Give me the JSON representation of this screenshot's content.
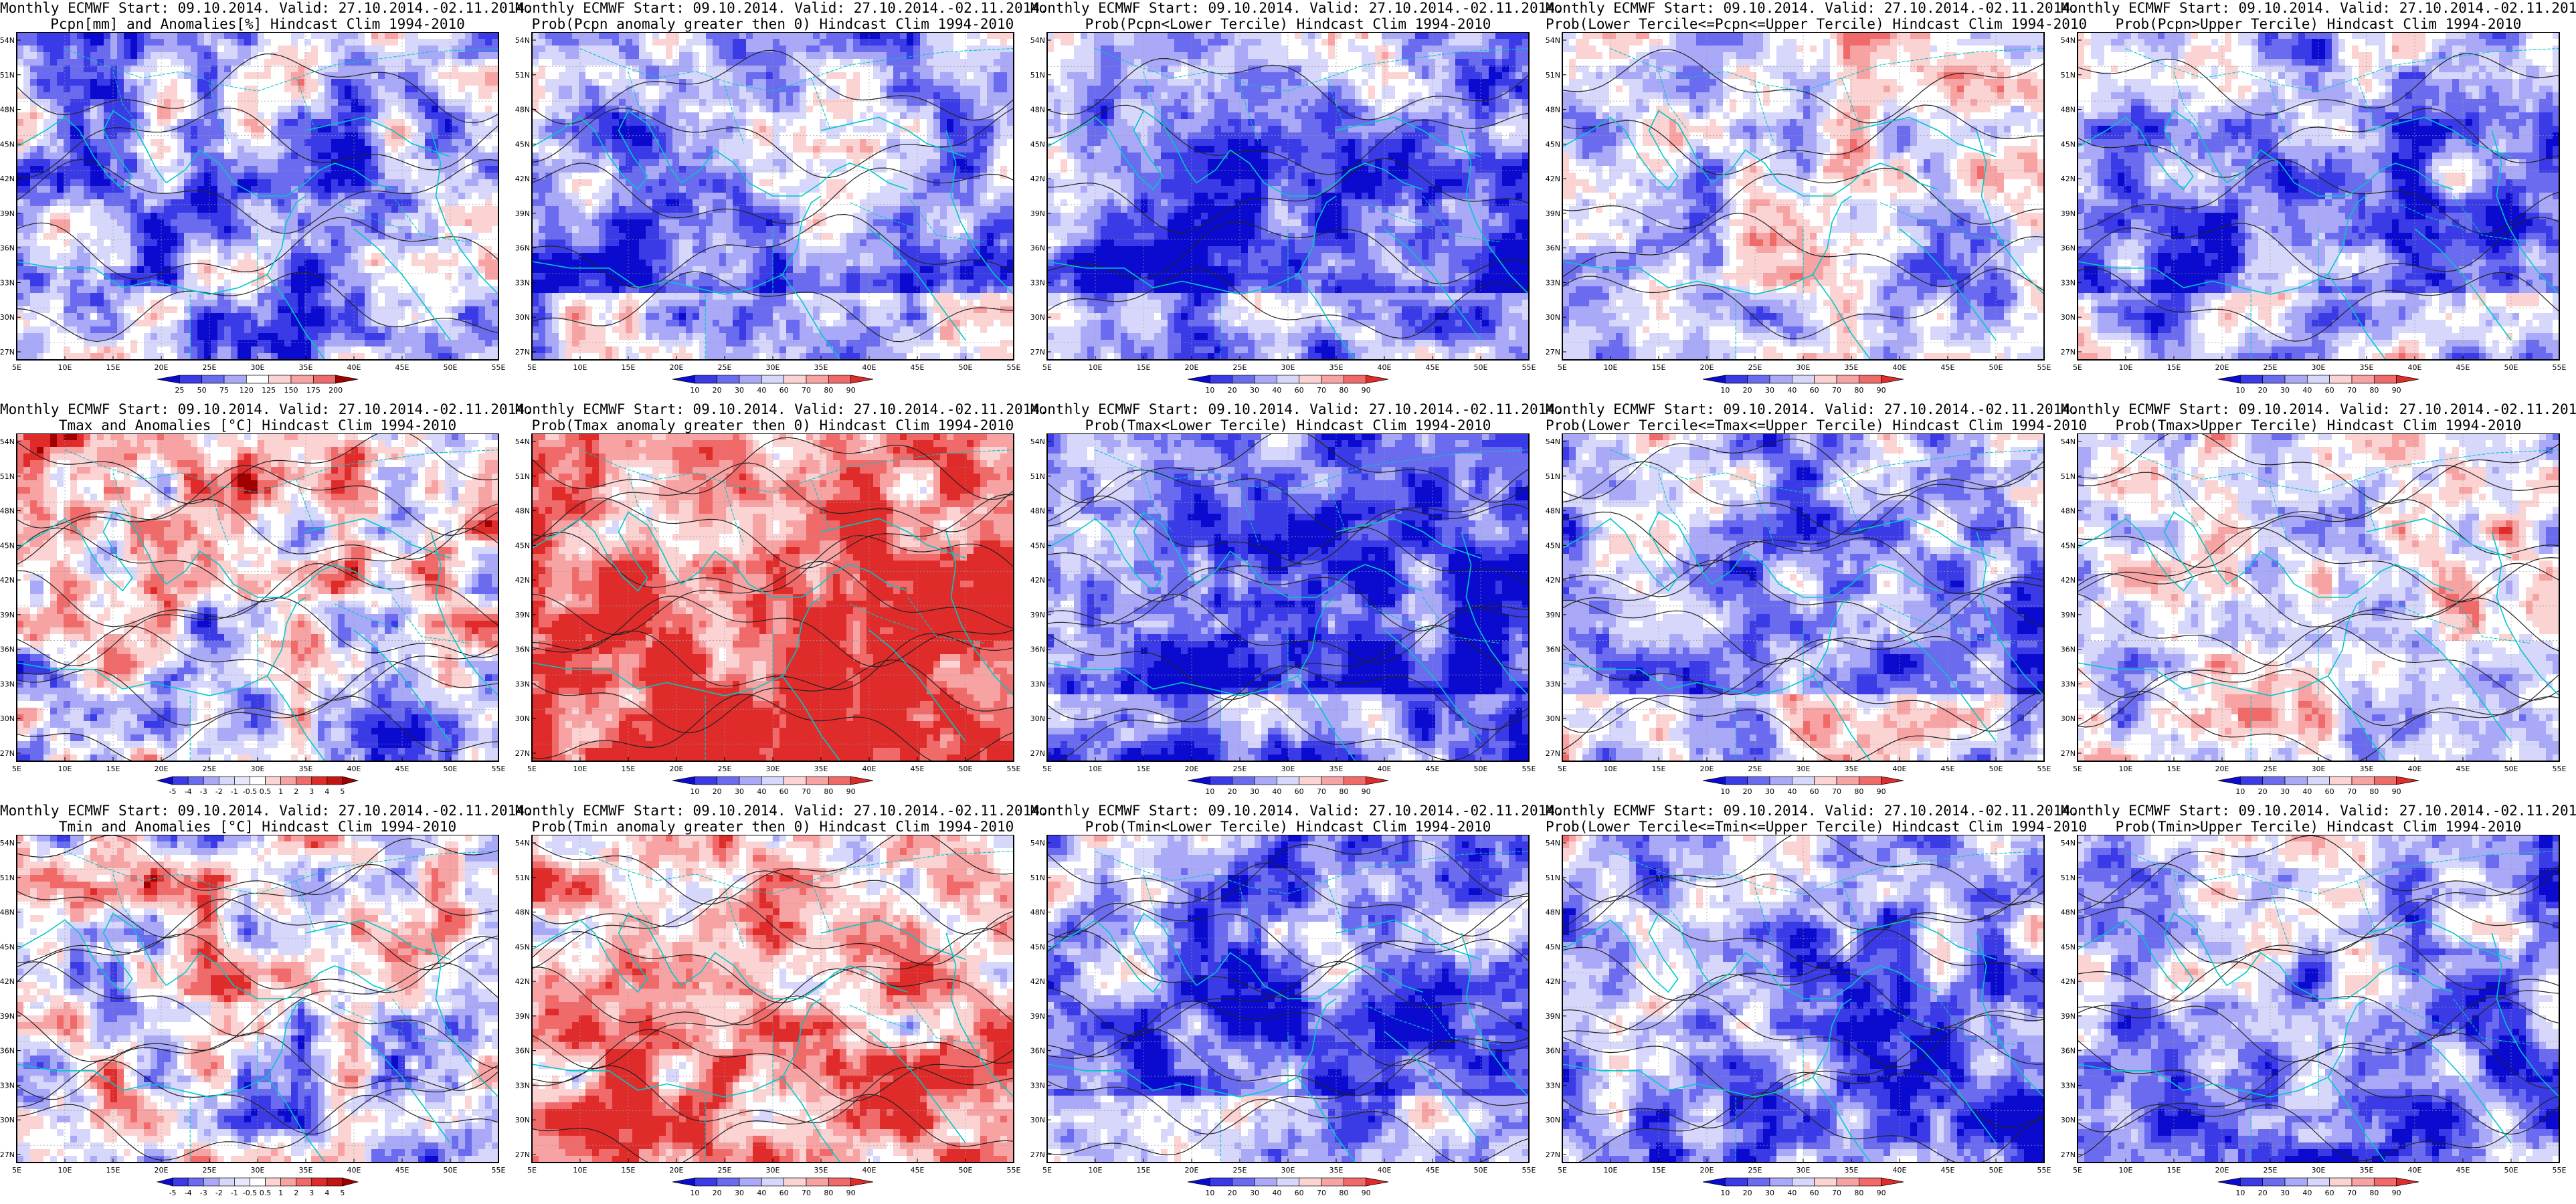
{
  "colors": {
    "dblue": "#0b0bd0",
    "blue": "#3a3ae6",
    "mblue": "#6b6bf0",
    "lblue": "#a9a9f7",
    "vlblue": "#d7d7fb",
    "white": "#ffffff",
    "vlred": "#fcd3d3",
    "lred": "#f7a3a3",
    "mred": "#f06a6a",
    "red": "#e02b2b",
    "dred": "#a00000",
    "coast": "#00c8c8",
    "contour": "#222222"
  },
  "axes": {
    "lat_labels": [
      "54N",
      "51N",
      "48N",
      "45N",
      "42N",
      "39N",
      "36N",
      "33N",
      "30N",
      "27N"
    ],
    "lon_labels": [
      "5E",
      "10E",
      "15E",
      "20E",
      "25E",
      "30E",
      "35E",
      "40E",
      "45E",
      "50E",
      "55E"
    ]
  },
  "colorbars": {
    "pcpn_anom": [
      "25",
      "50",
      "75",
      "120",
      "125",
      "150",
      "175",
      "200"
    ],
    "prob_a": [
      "10",
      "20",
      "30",
      "40",
      "60",
      "70",
      "80",
      "90"
    ],
    "prob_b": [
      "10",
      "20",
      "30",
      "40",
      "60",
      "70",
      "80",
      "90"
    ],
    "temp_anom": [
      "-5",
      "-4",
      "-3",
      "-2",
      "-1",
      "-0.5",
      "0.5",
      "1",
      "2",
      "3",
      "4",
      "5"
    ]
  },
  "panels": [
    {
      "l1": "Monthly ECMWF Start: 09.10.2014. Valid: 27.10.2014.-02.11.2014.",
      "l2": "Pcpn[mm] and Anomalies[%] Hindcast Clim 1994-2010",
      "palette": "pcpn",
      "bias": 0.1,
      "bar": "pcpn_anom"
    },
    {
      "l1": "Monthly ECMWF Start: 09.10.2014. Valid: 27.10.2014.-02.11.2014.",
      "l2": "Prob(Pcpn anomaly greater then 0) Hindcast Clim 1994-2010",
      "palette": "prob",
      "bias": 0.35,
      "bar": "prob_a"
    },
    {
      "l1": "Monthly ECMWF Start: 09.10.2014. Valid: 27.10.2014.-02.11.2014.",
      "l2": "Prob(Pcpn<Lower Tercile) Hindcast Clim 1994-2010",
      "palette": "prob",
      "bias": 0.45,
      "bar": "prob_b"
    },
    {
      "l1": "Monthly ECMWF Start: 09.10.2014. Valid: 27.10.2014.-02.11.2014.",
      "l2": "Prob(Lower Tercile<=Pcpn<=Upper Tercile) Hindcast Clim 1994-2010",
      "palette": "prob",
      "bias": 0.1,
      "bar": "prob_a"
    },
    {
      "l1": "Monthly ECMWF Start: 09.10.2014. Valid: 27.10.2014.-02.11.2014.",
      "l2": "Prob(Pcpn>Upper Tercile) Hindcast Clim 1994-2010",
      "palette": "prob",
      "bias": 0.4,
      "bar": "prob_b"
    },
    {
      "l1": "Monthly ECMWF Start: 09.10.2014. Valid: 27.10.2014.-02.11.2014.",
      "l2": "Tmax and Anomalies [°C] Hindcast Clim 1994-2010",
      "palette": "temp",
      "bias": -0.35,
      "bar": "temp_anom"
    },
    {
      "l1": "Monthly ECMWF Start: 09.10.2014. Valid: 27.10.2014.-02.11.2014.",
      "l2": "Prob(Tmax anomaly greater then 0) Hindcast Clim 1994-2010",
      "palette": "prob",
      "bias": -0.45,
      "bar": "prob_a"
    },
    {
      "l1": "Monthly ECMWF Start: 09.10.2014. Valid: 27.10.2014.-02.11.2014.",
      "l2": "Prob(Tmax<Lower Tercile) Hindcast Clim 1994-2010",
      "palette": "prob",
      "bias": 0.55,
      "bar": "prob_b"
    },
    {
      "l1": "Monthly ECMWF Start: 09.10.2014. Valid: 27.10.2014.-02.11.2014.",
      "l2": "Prob(Lower Tercile<=Tmax<=Upper Tercile) Hindcast Clim 1994-2010",
      "palette": "prob",
      "bias": 0.35,
      "bar": "prob_a"
    },
    {
      "l1": "Monthly ECMWF Start: 09.10.2014. Valid: 27.10.2014.-02.11.2014.",
      "l2": "Prob(Tmax>Upper Tercile) Hindcast Clim 1994-2010",
      "palette": "prob",
      "bias": 0.05,
      "bar": "prob_b"
    },
    {
      "l1": "Monthly ECMWF Start: 09.10.2014. Valid: 27.10.2014.-02.11.2014.",
      "l2": "Tmin and Anomalies [°C] Hindcast Clim 1994-2010",
      "palette": "temp",
      "bias": -0.1,
      "bar": "temp_anom"
    },
    {
      "l1": "Monthly ECMWF Start: 09.10.2014. Valid: 27.10.2014.-02.11.2014.",
      "l2": "Prob(Tmin anomaly greater then 0) Hindcast Clim 1994-2010",
      "palette": "prob",
      "bias": -0.25,
      "bar": "prob_a"
    },
    {
      "l1": "Monthly ECMWF Start: 09.10.2014. Valid: 27.10.2014.-02.11.2014.",
      "l2": "Prob(Tmin<Lower Tercile) Hindcast Clim 1994-2010",
      "palette": "prob",
      "bias": 0.4,
      "bar": "prob_b"
    },
    {
      "l1": "Monthly ECMWF Start: 09.10.2014. Valid: 27.10.2014.-02.11.2014.",
      "l2": "Prob(Lower Tercile<=Tmin<=Upper Tercile) Hindcast Clim 1994-2010",
      "palette": "prob",
      "bias": 0.3,
      "bar": "prob_a"
    },
    {
      "l1": "Monthly ECMWF Start: 09.10.2014. Valid: 27.10.2014.-02.11.2014.",
      "l2": "Prob(Tmin>Upper Tercile) Hindcast Clim 1994-2010",
      "palette": "prob",
      "bias": 0.3,
      "bar": "prob_b"
    }
  ]
}
